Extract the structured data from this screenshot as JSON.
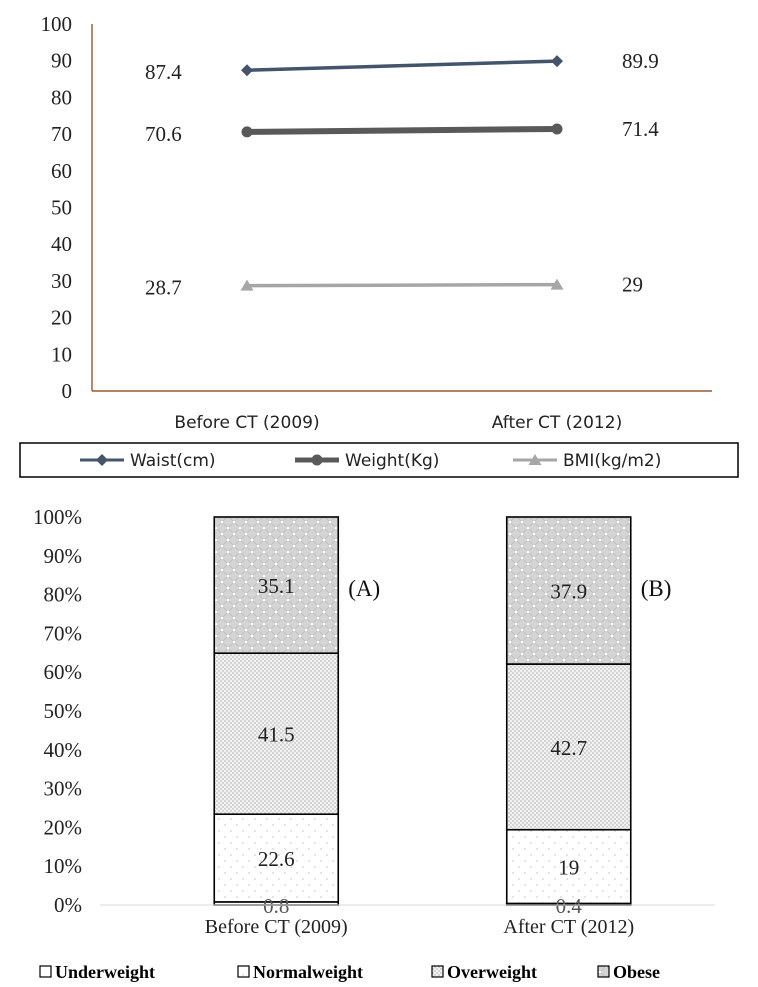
{
  "chart_data": [
    {
      "type": "line",
      "categories": [
        "Before CT (2009)",
        "After CT (2012)"
      ],
      "series": [
        {
          "name": "Waist(cm)",
          "values": [
            87.4,
            89.9
          ],
          "color": "#44546A",
          "marker": "diamond"
        },
        {
          "name": "Weight(Kg)",
          "values": [
            70.6,
            71.4
          ],
          "color": "#595959",
          "marker": "circle"
        },
        {
          "name": "BMI(kg/m2)",
          "values": [
            28.7,
            29
          ],
          "color": "#A6A6A6",
          "marker": "triangle"
        }
      ],
      "ylim": [
        0,
        100
      ],
      "yticks": [
        "0",
        "10",
        "20",
        "30",
        "40",
        "50",
        "60",
        "70",
        "80",
        "90",
        "100"
      ],
      "data_labels": {
        "left": [
          "87.4",
          "70.6",
          "28.7"
        ],
        "right": [
          "89.9",
          "71.4",
          "29"
        ]
      },
      "legend": {
        "position": "bottom",
        "entries": [
          "Waist(cm)",
          "Weight(Kg)",
          "BMI(kg/m2)"
        ]
      },
      "grid": false,
      "axis_color": "#843C0C"
    },
    {
      "type": "bar",
      "stacked": true,
      "percent": true,
      "categories": [
        "Before CT (2009)",
        "After CT (2012)"
      ],
      "series": [
        {
          "name": "Underweight",
          "values": [
            0.8,
            0.4
          ],
          "pattern": "none"
        },
        {
          "name": "Normalweight",
          "values": [
            22.6,
            19
          ],
          "pattern": "light-dots"
        },
        {
          "name": "Overweight",
          "values": [
            41.5,
            42.7
          ],
          "pattern": "fine-dots"
        },
        {
          "name": "Obese",
          "values": [
            35.1,
            37.9
          ],
          "pattern": "dense-dots"
        }
      ],
      "value_labels": [
        [
          "0.8",
          "22.6",
          "41.5",
          "35.1"
        ],
        [
          "0.4",
          "19",
          "42.7",
          "37.9"
        ]
      ],
      "annotations": [
        "(A)",
        "(B)"
      ],
      "ylim": [
        0,
        100
      ],
      "yticks": [
        "0%",
        "10%",
        "20%",
        "30%",
        "40%",
        "50%",
        "60%",
        "70%",
        "80%",
        "90%",
        "100%"
      ],
      "legend": {
        "position": "bottom",
        "entries": [
          "Underweight",
          "Normalweight",
          "Overweight",
          "Obese"
        ]
      },
      "grid": false
    }
  ]
}
